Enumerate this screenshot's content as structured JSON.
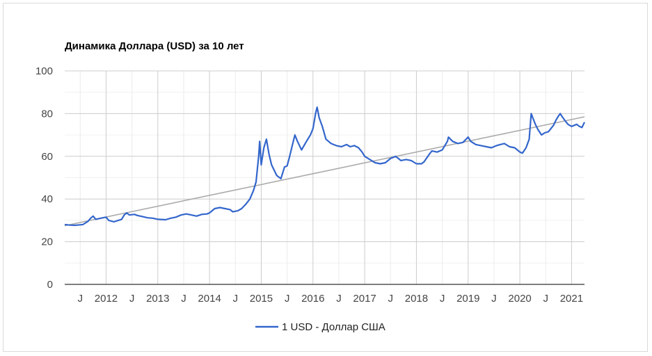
{
  "chart_data": {
    "type": "line",
    "title": "Динамика Доллара (USD) за 10 лет",
    "xlabel": "",
    "ylabel": "",
    "ylim": [
      0,
      100
    ],
    "y_ticks": [
      "0",
      "20",
      "40",
      "60",
      "80",
      "100"
    ],
    "x_range": [
      2011.2,
      2021.25
    ],
    "x_ticks": [
      {
        "x": 2011.5,
        "label": "J"
      },
      {
        "x": 2012.0,
        "label": "2012"
      },
      {
        "x": 2012.5,
        "label": "J"
      },
      {
        "x": 2013.0,
        "label": "2013"
      },
      {
        "x": 2013.5,
        "label": "J"
      },
      {
        "x": 2014.0,
        "label": "2014"
      },
      {
        "x": 2014.5,
        "label": "J"
      },
      {
        "x": 2015.0,
        "label": "2015"
      },
      {
        "x": 2015.5,
        "label": "J"
      },
      {
        "x": 2016.0,
        "label": "2016"
      },
      {
        "x": 2016.5,
        "label": "J"
      },
      {
        "x": 2017.0,
        "label": "2017"
      },
      {
        "x": 2017.5,
        "label": "J"
      },
      {
        "x": 2018.0,
        "label": "2018"
      },
      {
        "x": 2018.5,
        "label": "J"
      },
      {
        "x": 2019.0,
        "label": "2019"
      },
      {
        "x": 2019.5,
        "label": "J"
      },
      {
        "x": 2020.0,
        "label": "2020"
      },
      {
        "x": 2020.5,
        "label": "J"
      },
      {
        "x": 2021.0,
        "label": "2021"
      }
    ],
    "grid": true,
    "legend_position": "bottom",
    "series": [
      {
        "name": "1 USD - Доллар США",
        "color": "#3366cc",
        "points": [
          [
            2011.2,
            28.0
          ],
          [
            2011.3,
            27.8
          ],
          [
            2011.4,
            27.7
          ],
          [
            2011.5,
            27.9
          ],
          [
            2011.55,
            28.0
          ],
          [
            2011.65,
            29.5
          ],
          [
            2011.7,
            31.0
          ],
          [
            2011.75,
            32.0
          ],
          [
            2011.8,
            30.5
          ],
          [
            2011.9,
            31.0
          ],
          [
            2012.0,
            31.5
          ],
          [
            2012.05,
            30.0
          ],
          [
            2012.15,
            29.3
          ],
          [
            2012.3,
            30.5
          ],
          [
            2012.35,
            32.5
          ],
          [
            2012.4,
            33.5
          ],
          [
            2012.45,
            32.5
          ],
          [
            2012.55,
            32.8
          ],
          [
            2012.6,
            32.3
          ],
          [
            2012.7,
            31.8
          ],
          [
            2012.8,
            31.2
          ],
          [
            2012.9,
            31.0
          ],
          [
            2013.0,
            30.5
          ],
          [
            2013.15,
            30.3
          ],
          [
            2013.25,
            31.0
          ],
          [
            2013.35,
            31.5
          ],
          [
            2013.45,
            32.5
          ],
          [
            2013.55,
            33.0
          ],
          [
            2013.65,
            32.5
          ],
          [
            2013.75,
            32.0
          ],
          [
            2013.85,
            32.8
          ],
          [
            2013.95,
            33.0
          ],
          [
            2014.0,
            33.5
          ],
          [
            2014.05,
            34.5
          ],
          [
            2014.1,
            35.5
          ],
          [
            2014.2,
            36.0
          ],
          [
            2014.3,
            35.5
          ],
          [
            2014.4,
            35.0
          ],
          [
            2014.45,
            34.0
          ],
          [
            2014.55,
            34.5
          ],
          [
            2014.62,
            35.5
          ],
          [
            2014.7,
            37.5
          ],
          [
            2014.78,
            40.0
          ],
          [
            2014.85,
            44.0
          ],
          [
            2014.9,
            48.0
          ],
          [
            2014.95,
            60.0
          ],
          [
            2014.97,
            67.0
          ],
          [
            2015.0,
            56.0
          ],
          [
            2015.05,
            64.0
          ],
          [
            2015.1,
            68.0
          ],
          [
            2015.15,
            61.0
          ],
          [
            2015.2,
            56.0
          ],
          [
            2015.3,
            51.0
          ],
          [
            2015.38,
            49.5
          ],
          [
            2015.45,
            55.0
          ],
          [
            2015.5,
            55.5
          ],
          [
            2015.55,
            60.0
          ],
          [
            2015.6,
            65.0
          ],
          [
            2015.65,
            70.0
          ],
          [
            2015.7,
            67.0
          ],
          [
            2015.78,
            63.0
          ],
          [
            2015.85,
            66.0
          ],
          [
            2015.9,
            68.0
          ],
          [
            2015.95,
            70.0
          ],
          [
            2016.0,
            73.0
          ],
          [
            2016.05,
            80.0
          ],
          [
            2016.08,
            83.0
          ],
          [
            2016.12,
            78.0
          ],
          [
            2016.18,
            74.0
          ],
          [
            2016.25,
            68.0
          ],
          [
            2016.35,
            66.0
          ],
          [
            2016.45,
            65.0
          ],
          [
            2016.55,
            64.5
          ],
          [
            2016.65,
            65.5
          ],
          [
            2016.72,
            64.5
          ],
          [
            2016.8,
            65.0
          ],
          [
            2016.88,
            64.0
          ],
          [
            2016.95,
            62.0
          ],
          [
            2017.0,
            60.0
          ],
          [
            2017.1,
            58.5
          ],
          [
            2017.2,
            57.0
          ],
          [
            2017.3,
            56.5
          ],
          [
            2017.4,
            57.0
          ],
          [
            2017.5,
            59.0
          ],
          [
            2017.6,
            60.0
          ],
          [
            2017.7,
            58.0
          ],
          [
            2017.8,
            58.5
          ],
          [
            2017.9,
            58.0
          ],
          [
            2018.0,
            56.5
          ],
          [
            2018.1,
            56.5
          ],
          [
            2018.15,
            57.5
          ],
          [
            2018.25,
            61.0
          ],
          [
            2018.3,
            62.5
          ],
          [
            2018.4,
            62.0
          ],
          [
            2018.5,
            63.0
          ],
          [
            2018.55,
            65.0
          ],
          [
            2018.6,
            67.0
          ],
          [
            2018.62,
            69.0
          ],
          [
            2018.7,
            67.0
          ],
          [
            2018.8,
            66.0
          ],
          [
            2018.9,
            66.5
          ],
          [
            2019.0,
            69.0
          ],
          [
            2019.05,
            67.0
          ],
          [
            2019.15,
            65.5
          ],
          [
            2019.25,
            65.0
          ],
          [
            2019.35,
            64.5
          ],
          [
            2019.45,
            64.0
          ],
          [
            2019.55,
            65.0
          ],
          [
            2019.62,
            65.5
          ],
          [
            2019.7,
            66.0
          ],
          [
            2019.8,
            64.5
          ],
          [
            2019.9,
            64.0
          ],
          [
            2020.0,
            62.0
          ],
          [
            2020.05,
            61.5
          ],
          [
            2020.12,
            64.0
          ],
          [
            2020.18,
            68.0
          ],
          [
            2020.22,
            80.0
          ],
          [
            2020.25,
            78.0
          ],
          [
            2020.3,
            75.0
          ],
          [
            2020.35,
            72.5
          ],
          [
            2020.42,
            70.0
          ],
          [
            2020.48,
            71.0
          ],
          [
            2020.55,
            71.5
          ],
          [
            2020.6,
            73.0
          ],
          [
            2020.65,
            74.5
          ],
          [
            2020.7,
            77.0
          ],
          [
            2020.75,
            79.0
          ],
          [
            2020.78,
            80.0
          ],
          [
            2020.82,
            78.5
          ],
          [
            2020.88,
            76.5
          ],
          [
            2020.93,
            75.0
          ],
          [
            2021.0,
            74.0
          ],
          [
            2021.05,
            74.5
          ],
          [
            2021.1,
            75.0
          ],
          [
            2021.15,
            74.0
          ],
          [
            2021.2,
            73.5
          ],
          [
            2021.25,
            76.0
          ]
        ]
      },
      {
        "name": "",
        "color": "#aaaaaa",
        "points": [
          [
            2011.2,
            27.5
          ],
          [
            2021.25,
            78.5
          ]
        ]
      }
    ]
  }
}
